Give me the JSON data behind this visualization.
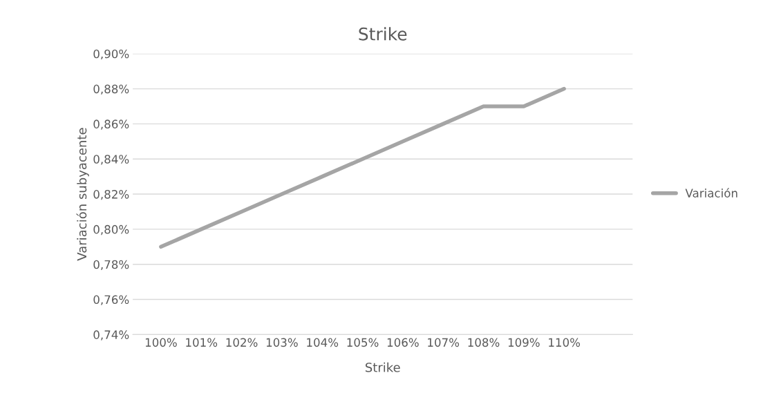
{
  "chart_data": {
    "type": "line",
    "title": "Strike",
    "xlabel": "Strike",
    "ylabel": "Variación subyacente",
    "categories": [
      "100%",
      "101%",
      "102%",
      "103%",
      "104%",
      "105%",
      "106%",
      "107%",
      "108%",
      "109%",
      "110%"
    ],
    "series": [
      {
        "name": "Variación",
        "color": "#a5a5a5",
        "values": [
          0.79,
          0.8,
          0.81,
          0.82,
          0.83,
          0.84,
          0.85,
          0.86,
          0.87,
          0.87,
          0.88
        ]
      }
    ],
    "ylim": [
      0.74,
      0.9
    ],
    "yticks": [
      {
        "value": 0.74,
        "label": "0,74%"
      },
      {
        "value": 0.76,
        "label": "0,76%"
      },
      {
        "value": 0.78,
        "label": "0,78%"
      },
      {
        "value": 0.8,
        "label": "0,80%"
      },
      {
        "value": 0.82,
        "label": "0,82%"
      },
      {
        "value": 0.84,
        "label": "0,84%"
      },
      {
        "value": 0.86,
        "label": "0,86%"
      },
      {
        "value": 0.88,
        "label": "0,88%"
      },
      {
        "value": 0.9,
        "label": "0,90%"
      }
    ],
    "grid": "y",
    "legend": "right",
    "marker": "none",
    "line_style": "solid"
  }
}
